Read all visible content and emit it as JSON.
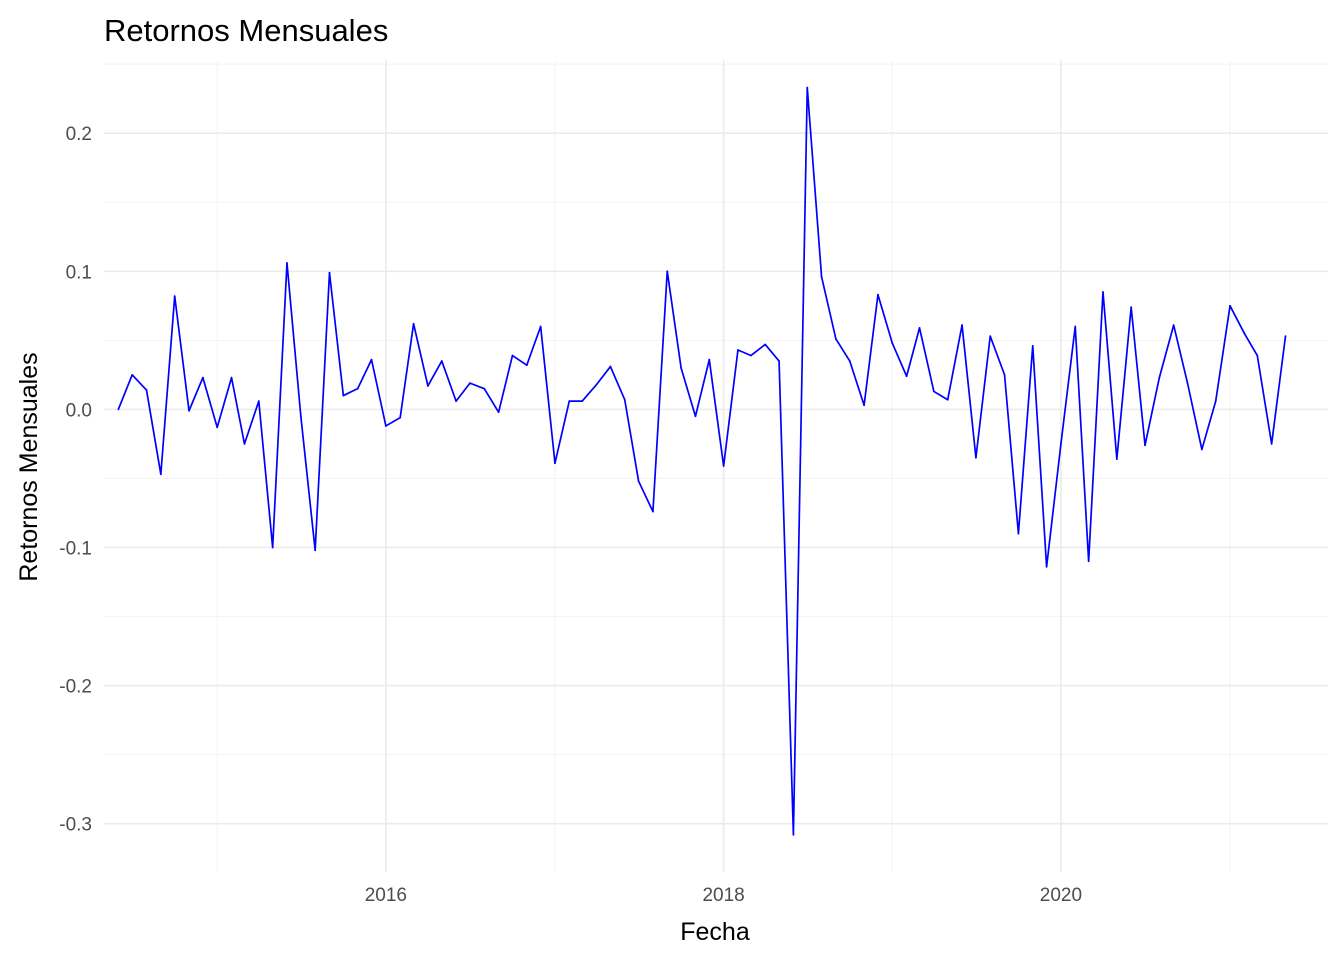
{
  "chart_data": {
    "type": "line",
    "title": "Retornos Mensuales",
    "xlabel": "Fecha",
    "ylabel": "Retornos Mensuales",
    "line_color": "#0000ff",
    "grid": true,
    "xlim": [
      "2014-05-01",
      "2021-08-01"
    ],
    "ylim": [
      -0.335,
      0.253
    ],
    "x_ticks": [
      {
        "value": "2016-01-01",
        "label": "2016"
      },
      {
        "value": "2018-01-01",
        "label": "2018"
      },
      {
        "value": "2020-01-01",
        "label": "2020"
      }
    ],
    "x_minor_ticks": [
      "2015-01-01",
      "2017-01-01",
      "2019-01-01",
      "2021-01-01"
    ],
    "y_ticks": [
      {
        "value": 0.2,
        "label": "0.2"
      },
      {
        "value": 0.1,
        "label": "0.1"
      },
      {
        "value": 0.0,
        "label": "0.0"
      },
      {
        "value": -0.1,
        "label": "-0.1"
      },
      {
        "value": -0.2,
        "label": "-0.2"
      },
      {
        "value": -0.3,
        "label": "-0.3"
      }
    ],
    "y_minor_ticks": [
      0.25,
      0.15,
      0.05,
      -0.05,
      -0.15,
      -0.25
    ],
    "series": [
      {
        "x": [
          "2014-06-01",
          "2014-07-01",
          "2014-08-01",
          "2014-09-01",
          "2014-10-01",
          "2014-11-01",
          "2014-12-01",
          "2015-01-01",
          "2015-02-01",
          "2015-03-01",
          "2015-04-01",
          "2015-05-01",
          "2015-06-01",
          "2015-07-01",
          "2015-08-01",
          "2015-09-01",
          "2015-10-01",
          "2015-11-01",
          "2015-12-01",
          "2016-01-01",
          "2016-02-01",
          "2016-03-01",
          "2016-04-01",
          "2016-05-01",
          "2016-06-01",
          "2016-07-01",
          "2016-08-01",
          "2016-09-01",
          "2016-10-01",
          "2016-11-01",
          "2016-12-01",
          "2017-01-01",
          "2017-02-01",
          "2017-03-01",
          "2017-04-01",
          "2017-05-01",
          "2017-06-01",
          "2017-07-01",
          "2017-08-01",
          "2017-09-01",
          "2017-10-01",
          "2017-11-01",
          "2017-12-01",
          "2018-01-01",
          "2018-02-01",
          "2018-03-01",
          "2018-04-01",
          "2018-05-01",
          "2018-06-01",
          "2018-07-01",
          "2018-08-01",
          "2018-09-01",
          "2018-10-01",
          "2018-11-01",
          "2018-12-01",
          "2019-01-01",
          "2019-02-01",
          "2019-03-01",
          "2019-04-01",
          "2019-05-01",
          "2019-06-01",
          "2019-07-01",
          "2019-08-01",
          "2019-09-01",
          "2019-10-01",
          "2019-11-01",
          "2019-12-01",
          "2020-01-01",
          "2020-02-01",
          "2020-03-01",
          "2020-04-01",
          "2020-05-01",
          "2020-06-01",
          "2020-07-01",
          "2020-08-01",
          "2020-09-01",
          "2020-10-01",
          "2020-11-01",
          "2020-12-01",
          "2021-01-01",
          "2021-02-01",
          "2021-03-01",
          "2021-04-01",
          "2021-05-01"
        ],
        "values": [
          0.0,
          0.025,
          0.014,
          -0.047,
          0.082,
          -0.001,
          0.023,
          -0.013,
          0.023,
          -0.025,
          0.006,
          -0.1,
          0.106,
          -0.005,
          -0.102,
          0.099,
          0.01,
          0.015,
          0.036,
          -0.012,
          -0.006,
          0.062,
          0.017,
          0.035,
          0.006,
          0.019,
          0.015,
          -0.002,
          0.039,
          0.032,
          0.06,
          -0.039,
          0.006,
          0.006,
          0.018,
          0.031,
          0.007,
          -0.052,
          -0.074,
          0.1,
          0.03,
          -0.005,
          0.036,
          -0.041,
          0.043,
          0.039,
          0.047,
          0.035,
          -0.308,
          0.233,
          0.096,
          0.051,
          0.035,
          0.003,
          0.083,
          0.048,
          0.024,
          0.059,
          0.013,
          0.007,
          0.061,
          -0.035,
          0.053,
          0.025,
          -0.09,
          0.046,
          -0.114,
          -0.025,
          0.06,
          -0.11,
          0.085,
          -0.036,
          0.074,
          -0.026,
          0.023,
          0.061,
          0.019,
          -0.029,
          0.006,
          0.075,
          0.055,
          0.039,
          -0.025,
          0.053
        ]
      }
    ]
  }
}
